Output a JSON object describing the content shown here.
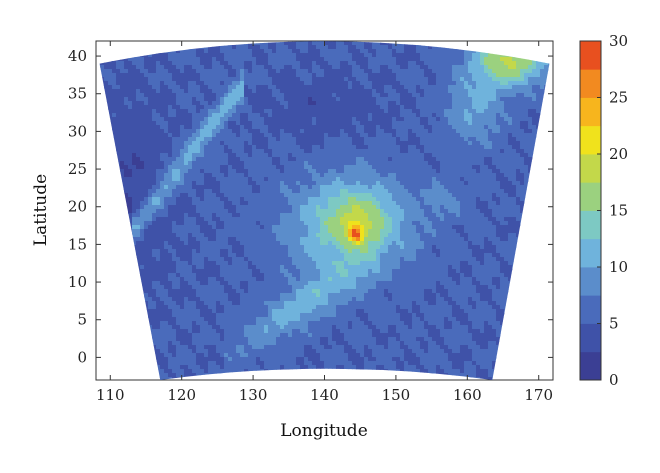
{
  "chart_data": {
    "type": "heatmap",
    "title": "",
    "xlabel": "Longitude",
    "ylabel": "Latitude",
    "xlim": [
      108,
      172
    ],
    "ylim": [
      -3,
      42
    ],
    "xticks": [
      110,
      120,
      130,
      140,
      150,
      160,
      170
    ],
    "yticks": [
      0,
      5,
      10,
      15,
      20,
      25,
      30,
      35,
      40
    ],
    "colorbar": {
      "min": 0,
      "max": 30,
      "ticks": [
        0,
        5,
        10,
        15,
        20,
        25,
        30
      ],
      "levels": [
        0,
        2.5,
        5,
        7.5,
        10,
        12.5,
        15,
        17.5,
        20,
        22.5,
        25,
        27.5,
        30
      ],
      "colors": [
        "#3b3f94",
        "#3f52a8",
        "#4a6bbb",
        "#5b8dcb",
        "#6fb3dc",
        "#7dc9c3",
        "#9bd17f",
        "#c3d84a",
        "#f0e21c",
        "#f7b51d",
        "#f28a20",
        "#e8501f",
        "#c4252a"
      ]
    },
    "domain_outline": {
      "west_edge": [
        [
          117,
          -3
        ],
        [
          108.5,
          39
        ]
      ],
      "east_edge": [
        [
          163.5,
          -3
        ],
        [
          171.5,
          39
        ]
      ],
      "north_arc_peak_lat": 42,
      "south_arc_low_lat": -3
    },
    "features": [
      {
        "name": "typhoon core",
        "lon": 144.2,
        "lat": 16.5,
        "peak_value": 27
      },
      {
        "name": "inner ring",
        "lon": 144.5,
        "lat": 17.5,
        "value": 17
      },
      {
        "name": "northeast high-value area",
        "lon": 166,
        "lat": 39.5,
        "value": 19
      },
      {
        "name": "southwest moisture band",
        "lon": 132,
        "lat": 6,
        "value": 11
      },
      {
        "name": "northwest band",
        "lon": 123,
        "lat": 27,
        "value": 11
      }
    ]
  }
}
